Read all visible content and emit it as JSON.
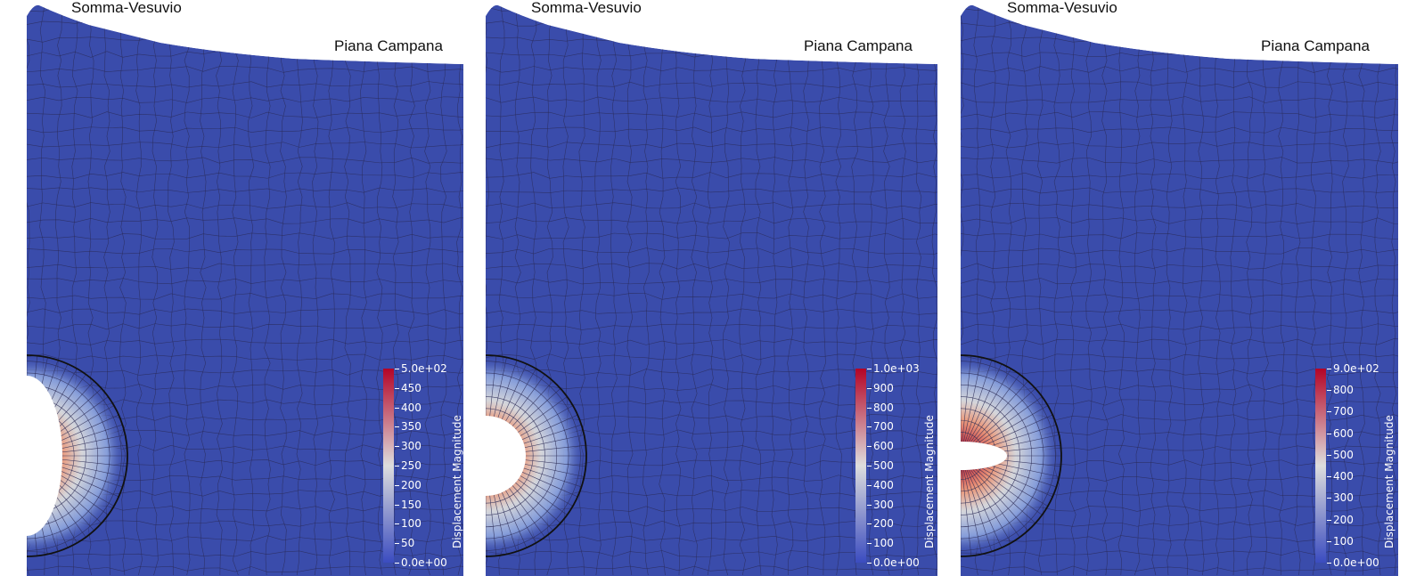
{
  "colors": {
    "mesh_fill": "#3a4cab",
    "mesh_line": "#2a2a55",
    "chamber_ring": "#111111",
    "cbar_low": "#3b4cc0",
    "cbar_mid": "#dddddd",
    "cbar_high": "#b40426"
  },
  "panels": [
    {
      "somma_label": "Somma-Vesuvio",
      "piana_label": "Piana Campana",
      "colorbar_title": "Displacement Magnitude",
      "colorbar_ticks": [
        "5.0e+02",
        "450",
        "400",
        "350",
        "300",
        "250",
        "200",
        "150",
        "100",
        "50",
        "0.0e+00"
      ],
      "cavity": "semi-ellipse-large"
    },
    {
      "somma_label": "Somma-Vesuvio",
      "piana_label": "Piana Campana",
      "colorbar_title": "Displacement Magnitude",
      "colorbar_ticks": [
        "1.0e+03",
        "900",
        "800",
        "700",
        "600",
        "500",
        "400",
        "300",
        "200",
        "100",
        "0.0e+00"
      ],
      "cavity": "circle-small"
    },
    {
      "somma_label": "Somma-Vesuvio",
      "piana_label": "Piana Campana",
      "colorbar_title": "Displacement Magnitude",
      "colorbar_ticks": [
        "9.0e+02",
        "800",
        "700",
        "600",
        "500",
        "400",
        "300",
        "200",
        "100",
        "0.0e+00"
      ],
      "cavity": "flat-ellipse"
    }
  ]
}
